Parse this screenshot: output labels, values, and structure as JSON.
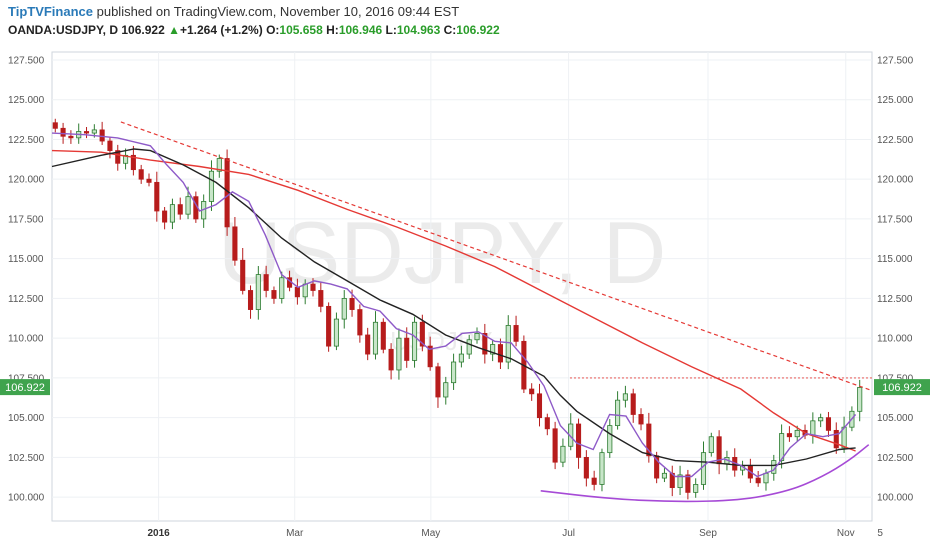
{
  "header": {
    "publisher": "TipTVFinance",
    "published_text": " published on TradingView.com, November 10, 2016 09:44 EST",
    "symbol": "OANDA:USDJPY, D",
    "price": "106.922",
    "change": "+1.264 (+1.2%)",
    "open_label": "O:",
    "open": "105.658",
    "high_label": "H:",
    "high": "106.946",
    "low_label": "L:",
    "low": "104.963",
    "close_label": "C:",
    "close": "106.922"
  },
  "watermark": {
    "main": "USDJPY, D",
    "sub": "USDJPY"
  },
  "colors": {
    "ma_red": "#e53935",
    "ma_black": "#222222",
    "ma_purple": "#8e5ac8",
    "trend_red": "#e53935",
    "arc": "#a64ad6",
    "up": "#2e7d32",
    "up_body": "#c8e6c9",
    "down": "#b71c1c",
    "down_body": "#b71c1c",
    "price_tag": "#3fa34d"
  },
  "chart_data": {
    "type": "candlestick",
    "symbol": "USDJPY",
    "interval": "D",
    "ylim": [
      98.5,
      128.0
    ],
    "y_ticks": [
      100.0,
      102.5,
      105.0,
      107.5,
      110.0,
      112.5,
      115.0,
      117.5,
      120.0,
      122.5,
      125.0,
      127.5
    ],
    "y_tick_labels": [
      "100.000",
      "102.500",
      "105.000",
      "107.500",
      "110.000",
      "112.500",
      "115.000",
      "117.500",
      "120.000",
      "122.500",
      "125.000",
      "127.500"
    ],
    "x_range": [
      0,
      50
    ],
    "x_ticks": [
      {
        "label": "2016",
        "x": 6.5,
        "bold": true
      },
      {
        "label": "Mar",
        "x": 14.8
      },
      {
        "label": "May",
        "x": 23.1
      },
      {
        "label": "Jul",
        "x": 31.5
      },
      {
        "label": "Sep",
        "x": 40.0
      },
      {
        "label": "Nov",
        "x": 48.4
      },
      {
        "label": "5",
        "x": 50.5
      }
    ],
    "last_price": 106.922,
    "last_price_label": "106.922",
    "series_close": [
      123.2,
      122.7,
      122.6,
      123.0,
      122.9,
      123.1,
      122.4,
      121.8,
      121.0,
      121.5,
      120.6,
      120.0,
      119.8,
      118.0,
      117.3,
      118.4,
      117.8,
      118.9,
      117.5,
      118.6,
      120.5,
      121.3,
      117.0,
      114.9,
      113.0,
      111.8,
      114.0,
      113.0,
      112.5,
      113.8,
      113.2,
      112.6,
      113.4,
      113.0,
      112.0,
      109.5,
      111.2,
      112.5,
      111.8,
      110.2,
      109.0,
      111.0,
      109.3,
      108.0,
      110.0,
      108.6,
      111.0,
      109.5,
      108.2,
      106.3,
      107.2,
      108.5,
      109.0,
      109.9,
      110.3,
      109.0,
      109.6,
      108.5,
      110.8,
      109.8,
      106.8,
      106.5,
      105.0,
      104.3,
      102.2,
      103.2,
      104.6,
      102.5,
      101.2,
      100.8,
      102.8,
      104.5,
      106.1,
      106.5,
      105.2,
      104.6,
      102.6,
      101.2,
      101.5,
      100.6,
      101.4,
      100.3,
      100.8,
      102.8,
      103.8,
      102.1,
      102.5,
      101.7,
      102.0,
      101.2,
      100.9,
      101.5,
      102.3,
      104.0,
      103.8,
      104.2,
      103.9,
      104.8,
      105.0,
      104.2,
      103.1,
      104.4,
      105.4,
      106.9
    ],
    "moving_averages": [
      {
        "name": "MA 200",
        "color": "#e53935",
        "points": [
          [
            0,
            121.8
          ],
          [
            3,
            121.7
          ],
          [
            6,
            121.2
          ],
          [
            9,
            120.8
          ],
          [
            12,
            120.3
          ],
          [
            15,
            119.3
          ],
          [
            18,
            118.1
          ],
          [
            21,
            117.0
          ],
          [
            24,
            115.8
          ],
          [
            27,
            114.5
          ],
          [
            30,
            112.9
          ],
          [
            33,
            111.3
          ],
          [
            36,
            109.7
          ],
          [
            39,
            108.2
          ],
          [
            42,
            106.8
          ],
          [
            44,
            105.3
          ],
          [
            46,
            104.0
          ],
          [
            48,
            103.3
          ],
          [
            49,
            102.9
          ]
        ]
      },
      {
        "name": "MA 100",
        "color": "#222222",
        "points": [
          [
            0,
            120.8
          ],
          [
            3,
            121.5
          ],
          [
            5,
            121.9
          ],
          [
            6,
            121.8
          ],
          [
            8,
            120.9
          ],
          [
            10,
            119.8
          ],
          [
            12,
            118.2
          ],
          [
            14,
            116.3
          ],
          [
            16,
            114.8
          ],
          [
            18,
            113.6
          ],
          [
            20,
            112.4
          ],
          [
            22,
            111.5
          ],
          [
            24,
            110.2
          ],
          [
            26,
            109.4
          ],
          [
            28,
            108.7
          ],
          [
            30,
            107.6
          ],
          [
            31,
            106.4
          ],
          [
            32,
            105.4
          ],
          [
            34,
            104.0
          ],
          [
            36,
            102.8
          ],
          [
            38,
            102.3
          ],
          [
            40,
            102.2
          ],
          [
            42,
            102.0
          ],
          [
            44,
            102.0
          ],
          [
            46,
            102.4
          ],
          [
            48,
            103.0
          ],
          [
            49,
            103.1
          ]
        ]
      },
      {
        "name": "MA 20",
        "color": "#8e5ac8",
        "points": [
          [
            0,
            122.9
          ],
          [
            2,
            122.8
          ],
          [
            4,
            122.6
          ],
          [
            6,
            122.1
          ],
          [
            7,
            120.9
          ],
          [
            8,
            119.8
          ],
          [
            9,
            118.0
          ],
          [
            10,
            118.4
          ],
          [
            11,
            119.2
          ],
          [
            12,
            118.6
          ],
          [
            13,
            116.5
          ],
          [
            14,
            114.0
          ],
          [
            15,
            113.2
          ],
          [
            16,
            113.6
          ],
          [
            17,
            113.4
          ],
          [
            18,
            113.1
          ],
          [
            19,
            112.0
          ],
          [
            20,
            111.7
          ],
          [
            21,
            110.6
          ],
          [
            22,
            110.2
          ],
          [
            23,
            109.3
          ],
          [
            24,
            109.5
          ],
          [
            25,
            110.3
          ],
          [
            26,
            110.4
          ],
          [
            27,
            109.8
          ],
          [
            28,
            109.7
          ],
          [
            29,
            108.5
          ],
          [
            30,
            107.0
          ],
          [
            31,
            104.5
          ],
          [
            32,
            103.4
          ],
          [
            33,
            103.0
          ],
          [
            34,
            105.2
          ],
          [
            35,
            105.1
          ],
          [
            36,
            103.4
          ],
          [
            37,
            102.2
          ],
          [
            38,
            101.3
          ],
          [
            39,
            101.3
          ],
          [
            40,
            102.2
          ],
          [
            41,
            102.4
          ],
          [
            42,
            102.0
          ],
          [
            43,
            101.3
          ],
          [
            44,
            101.7
          ],
          [
            45,
            103.1
          ],
          [
            46,
            104.0
          ],
          [
            47,
            103.8
          ],
          [
            48,
            104.0
          ],
          [
            49,
            105.2
          ]
        ]
      }
    ],
    "trendlines": [
      {
        "name": "descending resistance",
        "style": "dashed",
        "color": "#e53935",
        "from": [
          4.2,
          123.6
        ],
        "to": [
          50.8,
          106.7
        ]
      },
      {
        "name": "horizontal resistance",
        "style": "dotted",
        "color": "#e53935",
        "from": [
          31.6,
          107.5
        ],
        "to": [
          50.8,
          107.5
        ]
      }
    ],
    "arc": {
      "name": "rounding bottom",
      "color": "#a64ad6",
      "points": [
        [
          29.8,
          100.4
        ],
        [
          34,
          99.9
        ],
        [
          38,
          99.7
        ],
        [
          42,
          99.8
        ],
        [
          45,
          100.4
        ],
        [
          47,
          101.3
        ],
        [
          48.6,
          102.3
        ],
        [
          49.8,
          103.3
        ]
      ]
    }
  }
}
